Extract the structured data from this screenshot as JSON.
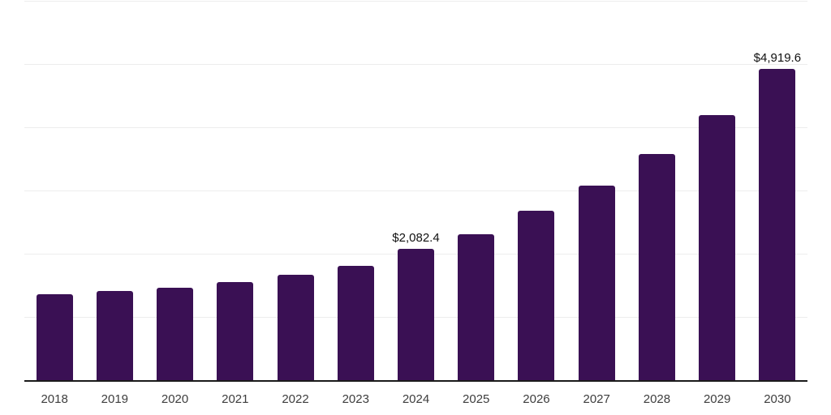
{
  "chart_data": {
    "type": "bar",
    "title": "",
    "xlabel": "",
    "ylabel": "",
    "categories": [
      "2018",
      "2019",
      "2020",
      "2021",
      "2022",
      "2023",
      "2024",
      "2025",
      "2026",
      "2027",
      "2028",
      "2029",
      "2030"
    ],
    "values": [
      1360,
      1415,
      1460,
      1545,
      1670,
      1810,
      2082.4,
      2310,
      2680,
      3075,
      3580,
      4190,
      4919.6
    ],
    "point_labels": [
      "",
      "",
      "",
      "",
      "",
      "",
      "$2,082.4",
      "",
      "",
      "",
      "",
      "",
      "$4,919.6"
    ],
    "ylim": [
      0,
      6000
    ],
    "grid_step": 1000,
    "grid_on": true,
    "legend": "none",
    "y_axis_tick_labels_visible": false,
    "colors": {
      "bar": "#3a1054",
      "gridline": "#ededed",
      "axis_line": "#1a1a1a",
      "tick_label": "#3d3d3d",
      "value_label": "#111111",
      "background": "#ffffff"
    }
  }
}
